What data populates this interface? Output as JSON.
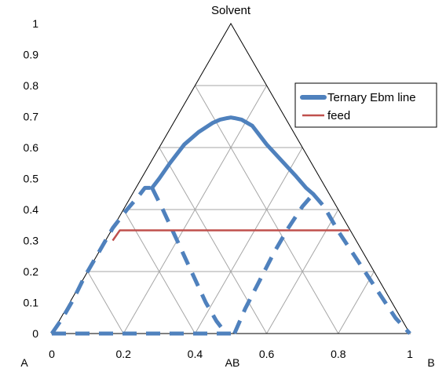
{
  "chart_data": {
    "type": "ternary-line",
    "title": "Solvent",
    "corner_labels": {
      "left": "A",
      "middle": "AB",
      "right": "B"
    },
    "yaxis": {
      "ylim": [
        0,
        1
      ],
      "ticks": [
        "0",
        "0.1",
        "0.2",
        "0.3",
        "0.4",
        "0.5",
        "0.6",
        "0.7",
        "0.8",
        "0.9",
        "1"
      ]
    },
    "xaxis": {
      "xlim": [
        0,
        1
      ],
      "ticks": [
        "0",
        "0.2",
        "0.4",
        "0.6",
        "0.8",
        "1"
      ]
    },
    "grid": true,
    "legend_position": "top-right",
    "legend": [
      {
        "label": "Ternary Ebm line",
        "color": "#4f81bd"
      },
      {
        "label": "feed",
        "color": "#c0504d"
      }
    ],
    "series": [
      {
        "name": "Ternary Ebm line",
        "color": "#4f81bd",
        "style": "solid",
        "x": [
          0.28,
          0.3,
          0.33,
          0.37,
          0.41,
          0.45,
          0.47,
          0.49,
          0.5,
          0.51,
          0.53,
          0.56,
          0.6,
          0.64,
          0.68,
          0.71,
          0.73
        ],
        "y": [
          0.47,
          0.5,
          0.55,
          0.61,
          0.65,
          0.68,
          0.69,
          0.695,
          0.697,
          0.695,
          0.69,
          0.67,
          0.61,
          0.56,
          0.51,
          0.47,
          0.45
        ]
      },
      {
        "name": "Ternary Ebm line (dashed)",
        "color": "#4f81bd",
        "style": "dashed",
        "x": [
          0.0,
          0.03,
          0.06,
          0.09,
          0.13,
          0.17,
          0.21,
          0.24,
          0.26,
          0.28
        ],
        "y": [
          0.0,
          0.05,
          0.11,
          0.18,
          0.26,
          0.34,
          0.4,
          0.44,
          0.47,
          0.47
        ]
      },
      {
        "name": "Ternary Ebm line (dashed)",
        "color": "#4f81bd",
        "style": "dashed",
        "x": [
          0.28,
          0.31,
          0.35,
          0.39,
          0.43,
          0.46,
          0.48,
          0.49
        ],
        "y": [
          0.47,
          0.4,
          0.3,
          0.2,
          0.1,
          0.04,
          0.01,
          0.0
        ]
      },
      {
        "name": "Ternary Ebm line (dashed)",
        "color": "#4f81bd",
        "style": "dashed",
        "x": [
          0.51,
          0.54,
          0.58,
          0.62,
          0.66,
          0.7,
          0.73
        ],
        "y": [
          0.0,
          0.08,
          0.17,
          0.26,
          0.34,
          0.41,
          0.45
        ]
      },
      {
        "name": "Ternary Ebm line (dashed)",
        "color": "#4f81bd",
        "style": "dashed",
        "x": [
          0.73,
          0.76,
          0.8,
          0.84,
          0.88,
          0.92,
          0.96,
          1.0
        ],
        "y": [
          0.45,
          0.41,
          0.33,
          0.26,
          0.19,
          0.12,
          0.05,
          0.0
        ]
      },
      {
        "name": "Ternary Ebm line (dashed)",
        "color": "#4f81bd",
        "style": "dashed",
        "x": [
          0.0,
          0.2,
          0.4,
          0.5
        ],
        "y": [
          0.0,
          0.0,
          0.0,
          0.0
        ]
      },
      {
        "name": "feed",
        "color": "#c0504d",
        "style": "solid",
        "x": [
          0.17,
          0.19,
          0.83
        ],
        "y": [
          0.3,
          0.333,
          0.333
        ]
      }
    ]
  }
}
